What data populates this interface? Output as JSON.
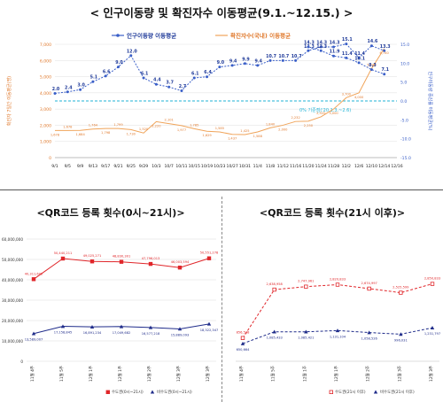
{
  "page": {
    "title": "< 인구이동량 및 확진자수 이동평균(9.1.~12.15.) >"
  },
  "chart_data": [
    {
      "type": "line",
      "title": "< 인구이동량 및 확진자수 이동평균(9.1.~12.15.) >",
      "ylabel": "확진자 7일간 이동평균(명)",
      "y2label": "인구이동량 증감률 이동평균(%)",
      "ylim": [
        0,
        7000
      ],
      "y2lim": [
        -15,
        15
      ],
      "yticks": [
        "0",
        "1,000",
        "2,000",
        "3,000",
        "4,000",
        "5,000",
        "6,000",
        "7,000"
      ],
      "y2ticks": [
        "-15.0",
        "-10.0",
        "-5.0",
        "0.0",
        "5.0",
        "10.0",
        "15.0"
      ],
      "x_labels": [
        "9/1",
        "9/5",
        "9/9",
        "9/13",
        "9/17",
        "9/21",
        "9/25",
        "9/29",
        "10/3",
        "10/7",
        "10/11",
        "10/15",
        "10/19",
        "10/23",
        "10/27",
        "10/31",
        "11/4",
        "11/8",
        "11/12",
        "11/16",
        "11/20",
        "11/24",
        "11/28",
        "12/2",
        "12/6",
        "12/10",
        "12/14",
        "12/16"
      ],
      "baseline_label": "0% 기준점('20.1.3.~2.6)",
      "series": [
        {
          "name": "인구이동량 이동평균",
          "axis": "right",
          "color": "#3a5fc8",
          "x": [
            0,
            1,
            2,
            3,
            4,
            5,
            6,
            7,
            8,
            9,
            10,
            11,
            12,
            13,
            14,
            15,
            16,
            17,
            18,
            19,
            20,
            21,
            22,
            23,
            24,
            25,
            26
          ],
          "values": [
            2.0,
            2.4,
            3.0,
            5.1,
            6.6,
            9.0,
            12.0,
            6.1,
            4.4,
            3.7,
            2.7,
            6.1,
            6.4,
            9.0,
            9.4,
            9.9,
            9.4,
            10.7,
            10.7,
            10.7,
            13.3,
            14.3,
            14.3,
            15.1,
            11.4,
            14.6,
            13.3
          ],
          "labels": [
            "2.0",
            "2.4",
            "3.0",
            "5.1",
            "6.6",
            "9.0",
            "12.0",
            "6.1",
            "4.4",
            "3.7",
            "2.7",
            "6.1",
            "6.4",
            "9.0",
            "9.4",
            "9.9",
            "9.4",
            "10.7",
            "10.7",
            "10.7",
            "13.3",
            "14.3",
            "14.3",
            "15.1",
            "11.4",
            "14.6",
            "13.3"
          ]
        },
        {
          "name": "인구이동량 이동평균 (후반)",
          "axis": "right",
          "color": "#3a5fc8",
          "x": [
            20,
            21,
            22,
            23,
            24,
            25,
            26
          ],
          "values": [
            14.3,
            13.3,
            11.9,
            11.4,
            10.1,
            8.3,
            7.1
          ],
          "labels": [
            "14.3",
            "13.3",
            "11.9",
            "11.4",
            "10.1",
            "8.3",
            "7.1"
          ]
        },
        {
          "name": "확진자수(국내) 이동평균",
          "axis": "left",
          "color": "#f0a45a",
          "x": [
            0,
            1,
            2,
            3,
            4,
            5,
            6,
            7,
            8,
            9,
            10,
            11,
            12,
            13,
            14,
            15,
            16,
            17,
            18,
            19,
            20,
            21,
            22,
            23,
            24,
            25,
            26
          ],
          "values": [
            1678,
            1678,
            1684,
            1764,
            1798,
            1799,
            1730,
            1520,
            2220,
            2101,
            1977,
            1785,
            1629,
            1585,
            1437,
            1425,
            1588,
            1840,
            2000,
            2232,
            2250,
            2520,
            3000,
            3700,
            4000,
            5500,
            6740
          ],
          "labels": [
            "1,678",
            "1,678",
            "1,684",
            "1,764",
            "1,798",
            "1,799",
            "1,730",
            "1,520",
            "2,220",
            "2,101",
            "1,977",
            "1,785",
            "1,629",
            "1,585",
            "1,437",
            "1,425",
            "1,588",
            "1,840",
            "2,000",
            "2,232",
            "2,250",
            "2,520",
            "3,000",
            "3,700",
            "4,000",
            "5,500",
            "6,740"
          ]
        }
      ],
      "legend": "top-center"
    },
    {
      "type": "line",
      "title": "<QR코드 등록 횟수(0시~21시)>",
      "categories": [
        "11월 4주",
        "11월 5주",
        "12월 1주",
        "12월 1주",
        "12월 2주",
        "12월 3주",
        "12월 3주"
      ],
      "ylim": [
        0,
        60000000
      ],
      "yticks": [
        "0",
        "10,000,000",
        "20,000,000",
        "30,000,000",
        "40,000,000",
        "50,000,000",
        "60,000,000"
      ],
      "series": [
        {
          "name": "수도권(0시~21시)",
          "color": "#e0262a",
          "values": [
            40311602,
            50440211,
            49025271,
            48830301,
            47796013,
            46003594,
            50551278
          ],
          "labels": [
            "40,311,602",
            "50,440,211",
            "49,025,271",
            "48,830,301",
            "47,796,013",
            "46,003,594",
            "50,551,278"
          ]
        },
        {
          "name": "비수도권(0시~21시)",
          "color": "#1f2c8a",
          "values": [
            13589007,
            17158845,
            16891234,
            17049682,
            16577218,
            15889093,
            18322347
          ],
          "labels": [
            "13,589,007",
            "17,158,845",
            "16,891,234",
            "17,049,682",
            "16,577,218",
            "15,889,093",
            "18,322,347"
          ]
        }
      ],
      "legend": "bottom-right"
    },
    {
      "type": "line",
      "title": "<QR코드 등록 횟수(21시 이후)>",
      "categories": [
        "11월 4주",
        "11월 5주",
        "12월 1주",
        "12월 1주",
        "12월 2주",
        "12월 3주",
        "12월 3주"
      ],
      "ylim": [
        0,
        4500000
      ],
      "series": [
        {
          "name": "수도권(21시 이후)",
          "color": "#e0262a",
          "values": [
            856538,
            2638958,
            2747961,
            2820833,
            2674997,
            2525599,
            2850833
          ],
          "labels": [
            "856,538",
            "2,638,958",
            "2,747,961",
            "2,820,833",
            "2,674,997",
            "2,525,599",
            "2,850,833"
          ]
        },
        {
          "name": "비수도권(21시 이후)",
          "color": "#1f2c8a",
          "values": [
            650664,
            1085433,
            1085421,
            1131104,
            1058526,
            996031,
            1231797
          ],
          "labels": [
            "650,664",
            "1,085,433",
            "1,085,421",
            "1,131,104",
            "1,058,526",
            "996,031",
            "1,231,797"
          ]
        }
      ],
      "legend": "bottom-right"
    }
  ]
}
